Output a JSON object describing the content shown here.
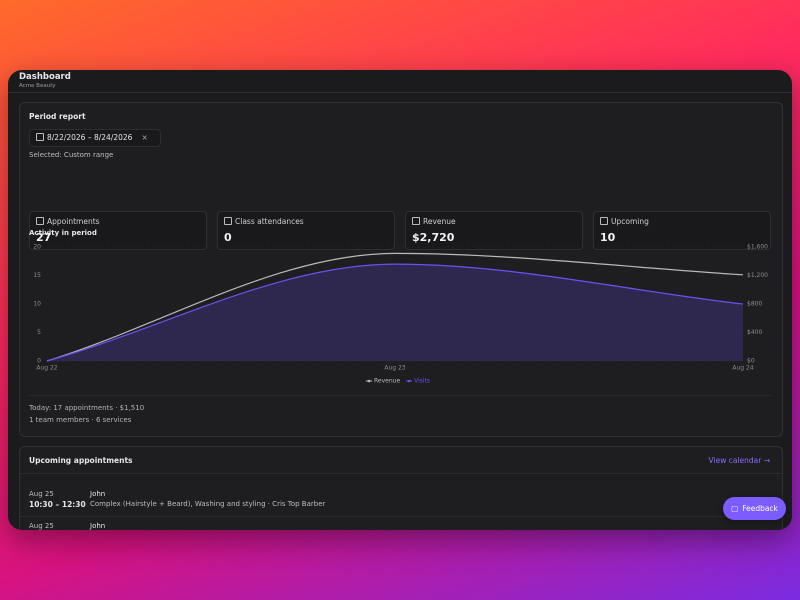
{
  "header": {
    "title": "Dashboard",
    "subtitle": "Acme Beauty"
  },
  "period_report": {
    "title": "Period report",
    "date_range": "8/22/2026 – 8/24/2026",
    "selected": "Selected: Custom range"
  },
  "stats": [
    {
      "label": "Appointments",
      "value": 27
    },
    {
      "label": "Class attendances",
      "value": 0
    },
    {
      "label": "Revenue",
      "value": "$2,720"
    },
    {
      "label": "Upcoming",
      "value": 10
    }
  ],
  "chart_data": {
    "type": "line",
    "title": "Activity in period",
    "categories": [
      "Aug 22",
      "Aug 23",
      "Aug 24"
    ],
    "series": [
      {
        "name": "Revenue",
        "color": "#b9b9bd",
        "values": [
          0,
          1510,
          1210
        ],
        "axis": "y2"
      },
      {
        "name": "Visits",
        "color": "#6f4ff2",
        "values": [
          0,
          17,
          10
        ],
        "area": true
      }
    ],
    "ylim": [
      0,
      20
    ],
    "yticks": [
      0,
      5,
      10,
      15,
      20
    ],
    "y2lim": [
      0,
      1600
    ],
    "y2ticks": [
      {
        "value": 0,
        "label": "$0"
      },
      {
        "value": 400,
        "label": "$400"
      },
      {
        "value": 800,
        "label": "$800"
      },
      {
        "value": 1200,
        "label": "$1,200"
      },
      {
        "value": 1600,
        "label": "$1,600"
      }
    ],
    "grid": true
  },
  "summary": [
    "Today: 17 appointments · $1,510",
    "1 team members · 6 services"
  ],
  "upcoming": {
    "title": "Upcoming appointments",
    "link": "View calendar →",
    "items": [
      {
        "date": "Aug 25",
        "time": "10:30 – 12:30",
        "client": "John",
        "details": "Complex (Hairstyle + Beard), Washing and styling · Cris Top Barber"
      },
      {
        "date": "Aug 25",
        "client": "John"
      }
    ]
  },
  "feedback": "Feedback"
}
